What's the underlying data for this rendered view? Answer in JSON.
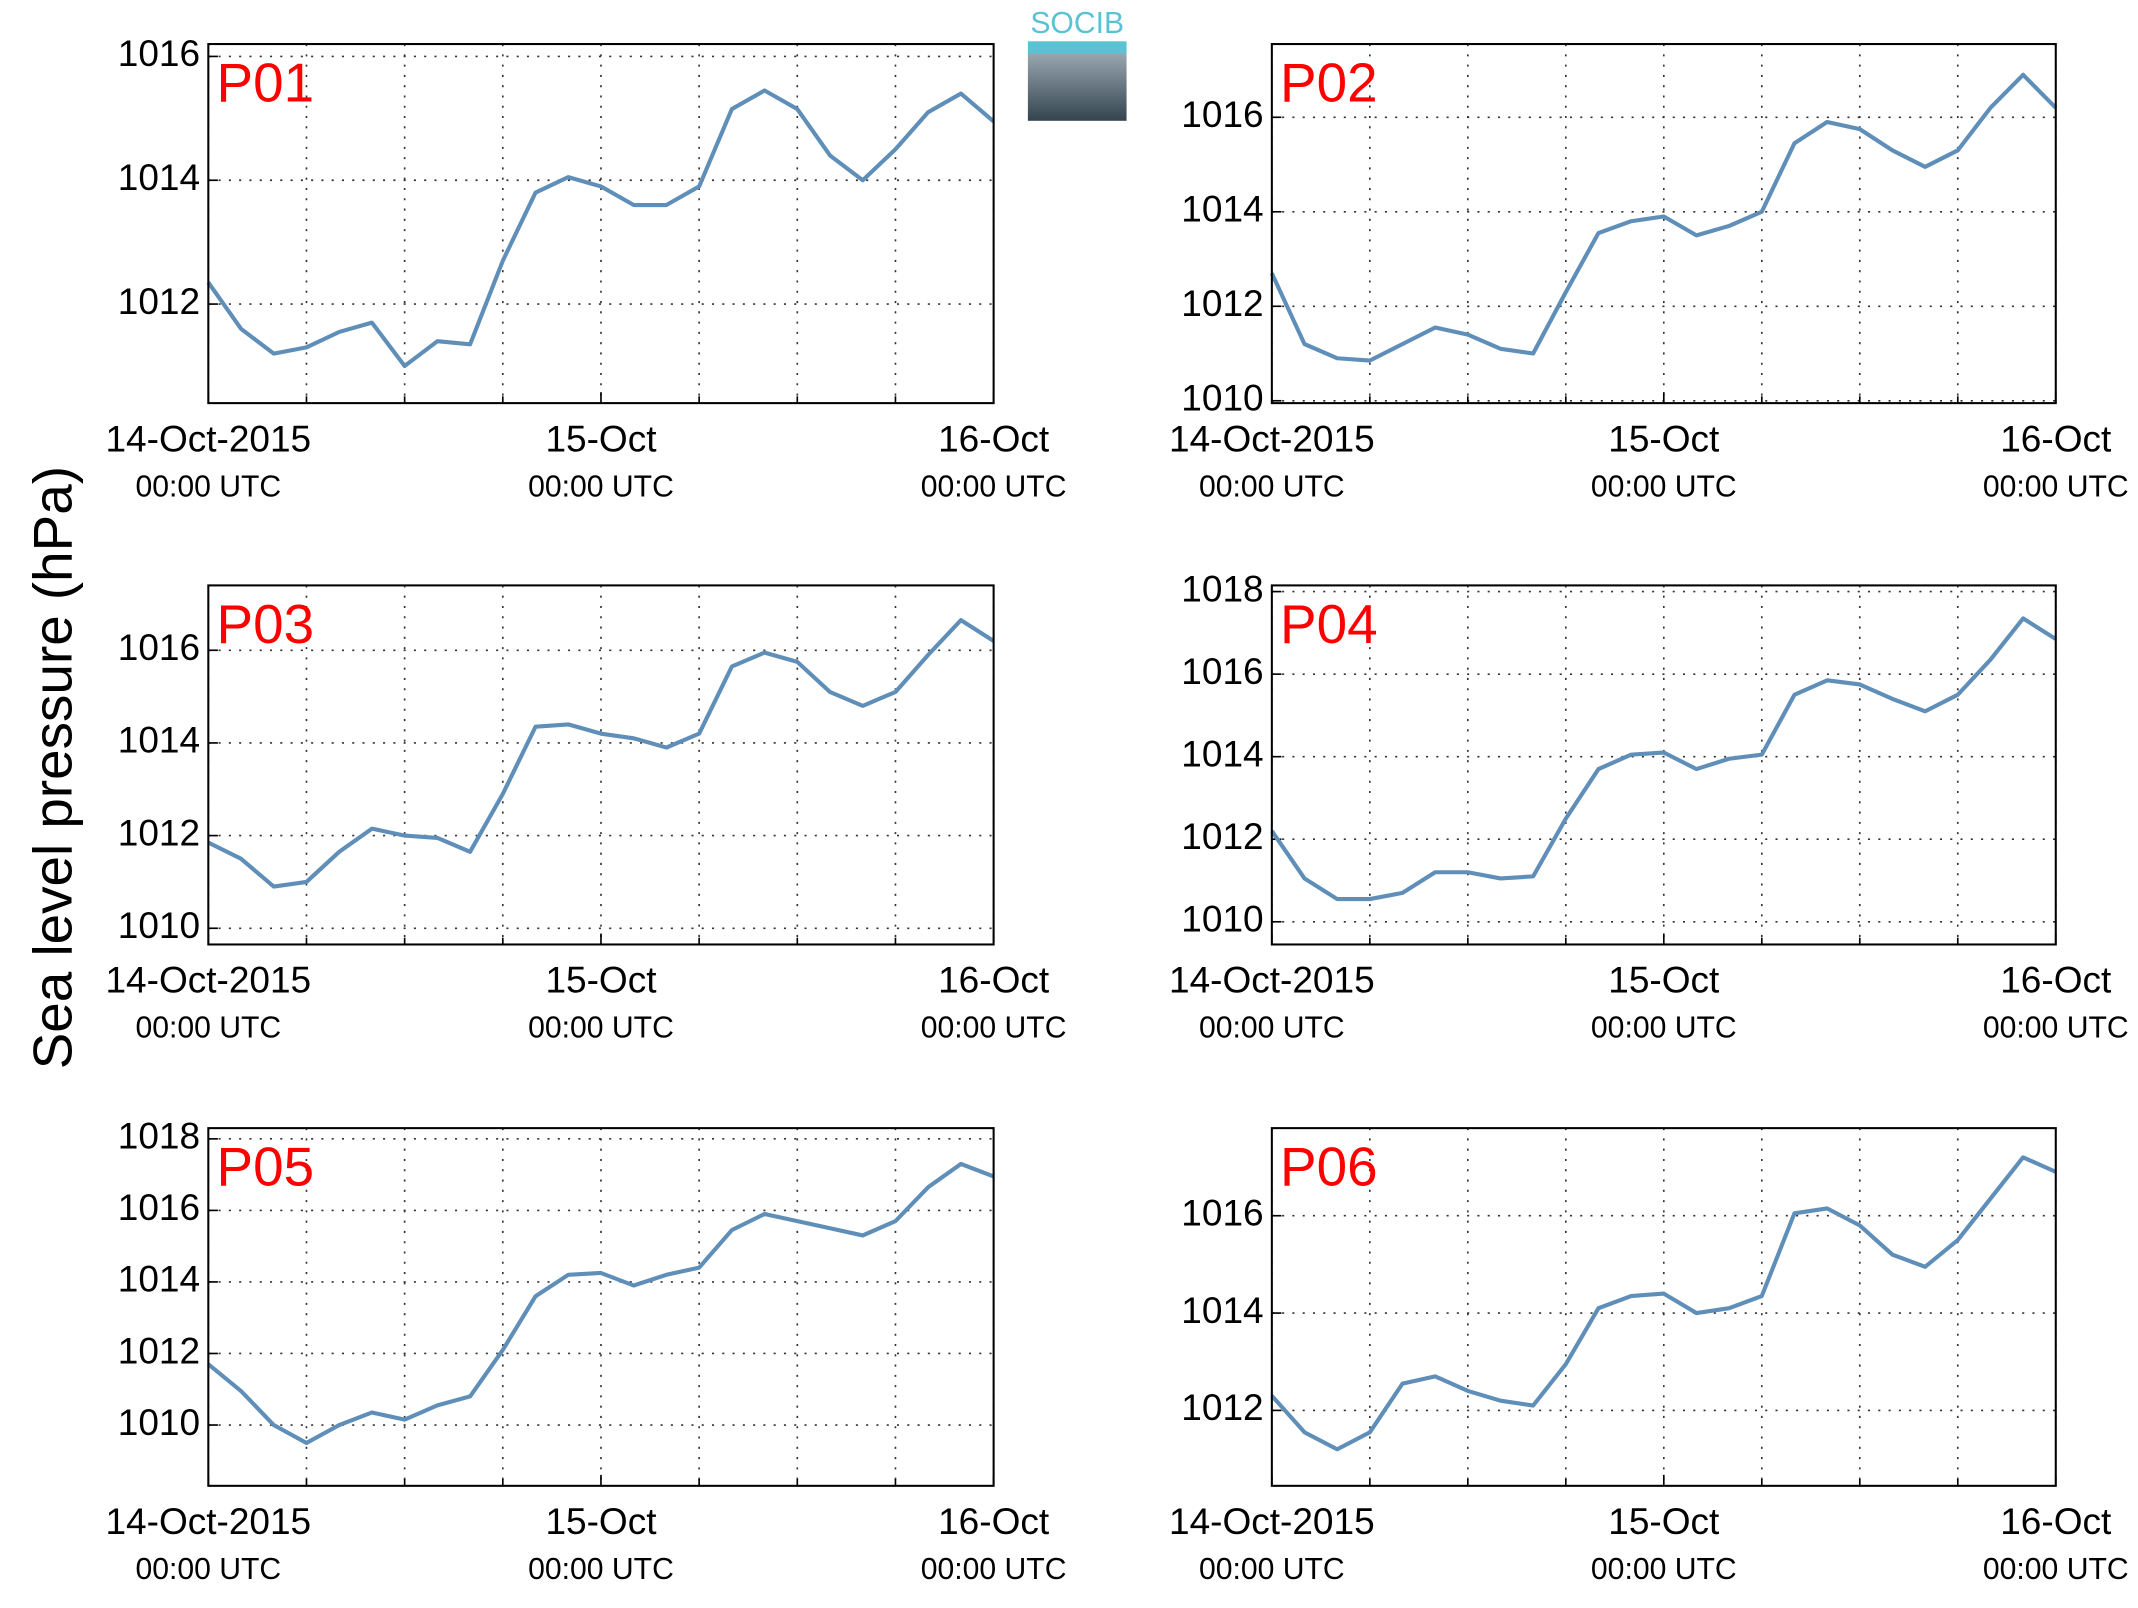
{
  "figure": {
    "ylabel": "Sea level pressure (hPa)",
    "logo": "SOCIB"
  },
  "chart_data": [
    {
      "type": "line",
      "annotation": "P01",
      "color": "#5f8fb8",
      "x": [
        "2015-10-14T00:00",
        "2015-10-14T02:00",
        "2015-10-14T04:00",
        "2015-10-14T06:00",
        "2015-10-14T08:00",
        "2015-10-14T10:00",
        "2015-10-14T12:00",
        "2015-10-14T14:00",
        "2015-10-14T16:00",
        "2015-10-14T18:00",
        "2015-10-14T20:00",
        "2015-10-14T22:00",
        "2015-10-15T00:00",
        "2015-10-15T02:00",
        "2015-10-15T04:00",
        "2015-10-15T06:00",
        "2015-10-15T08:00",
        "2015-10-15T10:00",
        "2015-10-15T12:00",
        "2015-10-15T14:00",
        "2015-10-15T16:00",
        "2015-10-15T18:00",
        "2015-10-15T20:00",
        "2015-10-15T22:00",
        "2015-10-16T00:00"
      ],
      "values": [
        1012.35,
        1011.6,
        1011.2,
        1011.3,
        1011.55,
        1011.7,
        1011.0,
        1011.4,
        1011.35,
        1012.7,
        1013.8,
        1014.05,
        1013.9,
        1013.6,
        1013.6,
        1013.9,
        1015.15,
        1015.45,
        1015.15,
        1014.4,
        1014.0,
        1014.5,
        1015.1,
        1015.4,
        1014.95
      ],
      "xlim": [
        "2015-10-14T00:00",
        "2015-10-16T00:00"
      ],
      "xticks": [
        {
          "value": "2015-10-14T00:00",
          "label": [
            "14-Oct-2015",
            "00:00 UTC"
          ]
        },
        {
          "value": "2015-10-15T00:00",
          "label": [
            "15-Oct",
            "00:00 UTC"
          ]
        },
        {
          "value": "2015-10-16T00:00",
          "label": [
            "16-Oct",
            "00:00 UTC"
          ]
        }
      ],
      "xminorticks": [
        "2015-10-14T06:00",
        "2015-10-14T12:00",
        "2015-10-14T18:00",
        "2015-10-15T06:00",
        "2015-10-15T12:00",
        "2015-10-15T18:00"
      ],
      "ylim": [
        1010.4,
        1016.2
      ],
      "yticks": [
        1012,
        1014,
        1016
      ],
      "grid": true
    },
    {
      "type": "line",
      "annotation": "P02",
      "color": "#5f8fb8",
      "x": [
        "2015-10-14T00:00",
        "2015-10-14T02:00",
        "2015-10-14T04:00",
        "2015-10-14T06:00",
        "2015-10-14T08:00",
        "2015-10-14T10:00",
        "2015-10-14T12:00",
        "2015-10-14T14:00",
        "2015-10-14T16:00",
        "2015-10-14T18:00",
        "2015-10-14T20:00",
        "2015-10-14T22:00",
        "2015-10-15T00:00",
        "2015-10-15T02:00",
        "2015-10-15T04:00",
        "2015-10-15T06:00",
        "2015-10-15T08:00",
        "2015-10-15T10:00",
        "2015-10-15T12:00",
        "2015-10-15T14:00",
        "2015-10-15T16:00",
        "2015-10-15T18:00",
        "2015-10-15T20:00",
        "2015-10-15T22:00",
        "2015-10-16T00:00"
      ],
      "values": [
        1012.7,
        1011.2,
        1010.9,
        1010.85,
        1011.2,
        1011.55,
        1011.4,
        1011.1,
        1011.0,
        1012.3,
        1013.55,
        1013.8,
        1013.9,
        1013.5,
        1013.7,
        1014.0,
        1015.45,
        1015.9,
        1015.75,
        1015.3,
        1014.95,
        1015.3,
        1016.2,
        1016.9,
        1016.2
      ],
      "xlim": [
        "2015-10-14T00:00",
        "2015-10-16T00:00"
      ],
      "xticks": [
        {
          "value": "2015-10-14T00:00",
          "label": [
            "14-Oct-2015",
            "00:00 UTC"
          ]
        },
        {
          "value": "2015-10-15T00:00",
          "label": [
            "15-Oct",
            "00:00 UTC"
          ]
        },
        {
          "value": "2015-10-16T00:00",
          "label": [
            "16-Oct",
            "00:00 UTC"
          ]
        }
      ],
      "xminorticks": [
        "2015-10-14T06:00",
        "2015-10-14T12:00",
        "2015-10-14T18:00",
        "2015-10-15T06:00",
        "2015-10-15T12:00",
        "2015-10-15T18:00"
      ],
      "ylim": [
        1009.95,
        1017.55
      ],
      "yticks": [
        1010,
        1012,
        1014,
        1016
      ],
      "grid": true
    },
    {
      "type": "line",
      "annotation": "P03",
      "color": "#5f8fb8",
      "x": [
        "2015-10-14T00:00",
        "2015-10-14T02:00",
        "2015-10-14T04:00",
        "2015-10-14T06:00",
        "2015-10-14T08:00",
        "2015-10-14T10:00",
        "2015-10-14T12:00",
        "2015-10-14T14:00",
        "2015-10-14T16:00",
        "2015-10-14T18:00",
        "2015-10-14T20:00",
        "2015-10-14T22:00",
        "2015-10-15T00:00",
        "2015-10-15T02:00",
        "2015-10-15T04:00",
        "2015-10-15T06:00",
        "2015-10-15T08:00",
        "2015-10-15T10:00",
        "2015-10-15T12:00",
        "2015-10-15T14:00",
        "2015-10-15T16:00",
        "2015-10-15T18:00",
        "2015-10-15T20:00",
        "2015-10-15T22:00",
        "2015-10-16T00:00"
      ],
      "values": [
        1011.85,
        1011.5,
        1010.9,
        1011.0,
        1011.65,
        1012.15,
        1012.0,
        1011.95,
        1011.65,
        1012.9,
        1014.35,
        1014.4,
        1014.2,
        1014.1,
        1013.9,
        1014.2,
        1015.65,
        1015.95,
        1015.75,
        1015.1,
        1014.8,
        1015.1,
        1015.9,
        1016.65,
        1016.2
      ],
      "xlim": [
        "2015-10-14T00:00",
        "2015-10-16T00:00"
      ],
      "xticks": [
        {
          "value": "2015-10-14T00:00",
          "label": [
            "14-Oct-2015",
            "00:00 UTC"
          ]
        },
        {
          "value": "2015-10-15T00:00",
          "label": [
            "15-Oct",
            "00:00 UTC"
          ]
        },
        {
          "value": "2015-10-16T00:00",
          "label": [
            "16-Oct",
            "00:00 UTC"
          ]
        }
      ],
      "xminorticks": [
        "2015-10-14T06:00",
        "2015-10-14T12:00",
        "2015-10-14T18:00",
        "2015-10-15T06:00",
        "2015-10-15T12:00",
        "2015-10-15T18:00"
      ],
      "ylim": [
        1009.65,
        1017.4
      ],
      "yticks": [
        1010,
        1012,
        1014,
        1016
      ],
      "grid": true
    },
    {
      "type": "line",
      "annotation": "P04",
      "color": "#5f8fb8",
      "x": [
        "2015-10-14T00:00",
        "2015-10-14T02:00",
        "2015-10-14T04:00",
        "2015-10-14T06:00",
        "2015-10-14T08:00",
        "2015-10-14T10:00",
        "2015-10-14T12:00",
        "2015-10-14T14:00",
        "2015-10-14T16:00",
        "2015-10-14T18:00",
        "2015-10-14T20:00",
        "2015-10-14T22:00",
        "2015-10-15T00:00",
        "2015-10-15T02:00",
        "2015-10-15T04:00",
        "2015-10-15T06:00",
        "2015-10-15T08:00",
        "2015-10-15T10:00",
        "2015-10-15T12:00",
        "2015-10-15T14:00",
        "2015-10-15T16:00",
        "2015-10-15T18:00",
        "2015-10-15T20:00",
        "2015-10-15T22:00",
        "2015-10-16T00:00"
      ],
      "values": [
        1012.2,
        1011.05,
        1010.55,
        1010.55,
        1010.7,
        1011.2,
        1011.2,
        1011.05,
        1011.1,
        1012.5,
        1013.7,
        1014.05,
        1014.1,
        1013.7,
        1013.95,
        1014.05,
        1015.5,
        1015.85,
        1015.75,
        1015.4,
        1015.1,
        1015.5,
        1016.35,
        1017.35,
        1016.85
      ],
      "xlim": [
        "2015-10-14T00:00",
        "2015-10-16T00:00"
      ],
      "xticks": [
        {
          "value": "2015-10-14T00:00",
          "label": [
            "14-Oct-2015",
            "00:00 UTC"
          ]
        },
        {
          "value": "2015-10-15T00:00",
          "label": [
            "15-Oct",
            "00:00 UTC"
          ]
        },
        {
          "value": "2015-10-16T00:00",
          "label": [
            "16-Oct",
            "00:00 UTC"
          ]
        }
      ],
      "xminorticks": [
        "2015-10-14T06:00",
        "2015-10-14T12:00",
        "2015-10-14T18:00",
        "2015-10-15T06:00",
        "2015-10-15T12:00",
        "2015-10-15T18:00"
      ],
      "ylim": [
        1009.45,
        1018.15
      ],
      "yticks": [
        1010,
        1012,
        1014,
        1016,
        1018
      ],
      "grid": true
    },
    {
      "type": "line",
      "annotation": "P05",
      "color": "#5f8fb8",
      "x": [
        "2015-10-14T00:00",
        "2015-10-14T02:00",
        "2015-10-14T04:00",
        "2015-10-14T06:00",
        "2015-10-14T08:00",
        "2015-10-14T10:00",
        "2015-10-14T12:00",
        "2015-10-14T14:00",
        "2015-10-14T16:00",
        "2015-10-14T18:00",
        "2015-10-14T20:00",
        "2015-10-14T22:00",
        "2015-10-15T00:00",
        "2015-10-15T02:00",
        "2015-10-15T04:00",
        "2015-10-15T06:00",
        "2015-10-15T08:00",
        "2015-10-15T10:00",
        "2015-10-15T12:00",
        "2015-10-15T14:00",
        "2015-10-15T16:00",
        "2015-10-15T18:00",
        "2015-10-15T20:00",
        "2015-10-15T22:00",
        "2015-10-16T00:00"
      ],
      "values": [
        1011.7,
        1010.95,
        1010.0,
        1009.5,
        1010.0,
        1010.35,
        1010.15,
        1010.55,
        1010.8,
        1012.1,
        1013.6,
        1014.2,
        1014.25,
        1013.9,
        1014.2,
        1014.4,
        1015.45,
        1015.9,
        1015.7,
        1015.5,
        1015.3,
        1015.7,
        1016.65,
        1017.3,
        1016.95
      ],
      "xlim": [
        "2015-10-14T00:00",
        "2015-10-16T00:00"
      ],
      "xticks": [
        {
          "value": "2015-10-14T00:00",
          "label": [
            "14-Oct-2015",
            "00:00 UTC"
          ]
        },
        {
          "value": "2015-10-15T00:00",
          "label": [
            "15-Oct",
            "00:00 UTC"
          ]
        },
        {
          "value": "2015-10-16T00:00",
          "label": [
            "16-Oct",
            "00:00 UTC"
          ]
        }
      ],
      "xminorticks": [
        "2015-10-14T06:00",
        "2015-10-14T12:00",
        "2015-10-14T18:00",
        "2015-10-15T06:00",
        "2015-10-15T12:00",
        "2015-10-15T18:00"
      ],
      "ylim": [
        1008.3,
        1018.3
      ],
      "yticks": [
        1010,
        1012,
        1014,
        1016,
        1018
      ],
      "grid": true
    },
    {
      "type": "line",
      "annotation": "P06",
      "color": "#5f8fb8",
      "x": [
        "2015-10-14T00:00",
        "2015-10-14T02:00",
        "2015-10-14T04:00",
        "2015-10-14T06:00",
        "2015-10-14T08:00",
        "2015-10-14T10:00",
        "2015-10-14T12:00",
        "2015-10-14T14:00",
        "2015-10-14T16:00",
        "2015-10-14T18:00",
        "2015-10-14T20:00",
        "2015-10-14T22:00",
        "2015-10-15T00:00",
        "2015-10-15T02:00",
        "2015-10-15T04:00",
        "2015-10-15T06:00",
        "2015-10-15T08:00",
        "2015-10-15T10:00",
        "2015-10-15T12:00",
        "2015-10-15T14:00",
        "2015-10-15T16:00",
        "2015-10-15T18:00",
        "2015-10-15T20:00",
        "2015-10-15T22:00",
        "2015-10-16T00:00"
      ],
      "values": [
        1012.3,
        1011.55,
        1011.2,
        1011.55,
        1012.55,
        1012.7,
        1012.4,
        1012.2,
        1012.1,
        1012.95,
        1014.1,
        1014.35,
        1014.4,
        1014.0,
        1014.1,
        1014.35,
        1016.05,
        1016.15,
        1015.8,
        1015.2,
        1014.95,
        1015.5,
        1016.35,
        1017.2,
        1016.9
      ],
      "xlim": [
        "2015-10-14T00:00",
        "2015-10-16T00:00"
      ],
      "xticks": [
        {
          "value": "2015-10-14T00:00",
          "label": [
            "14-Oct-2015",
            "00:00 UTC"
          ]
        },
        {
          "value": "2015-10-15T00:00",
          "label": [
            "15-Oct",
            "00:00 UTC"
          ]
        },
        {
          "value": "2015-10-16T00:00",
          "label": [
            "16-Oct",
            "00:00 UTC"
          ]
        }
      ],
      "xminorticks": [
        "2015-10-14T06:00",
        "2015-10-14T12:00",
        "2015-10-14T18:00",
        "2015-10-15T06:00",
        "2015-10-15T12:00",
        "2015-10-15T18:00"
      ],
      "ylim": [
        1010.45,
        1017.8
      ],
      "yticks": [
        1012,
        1014,
        1016
      ],
      "grid": true
    }
  ]
}
